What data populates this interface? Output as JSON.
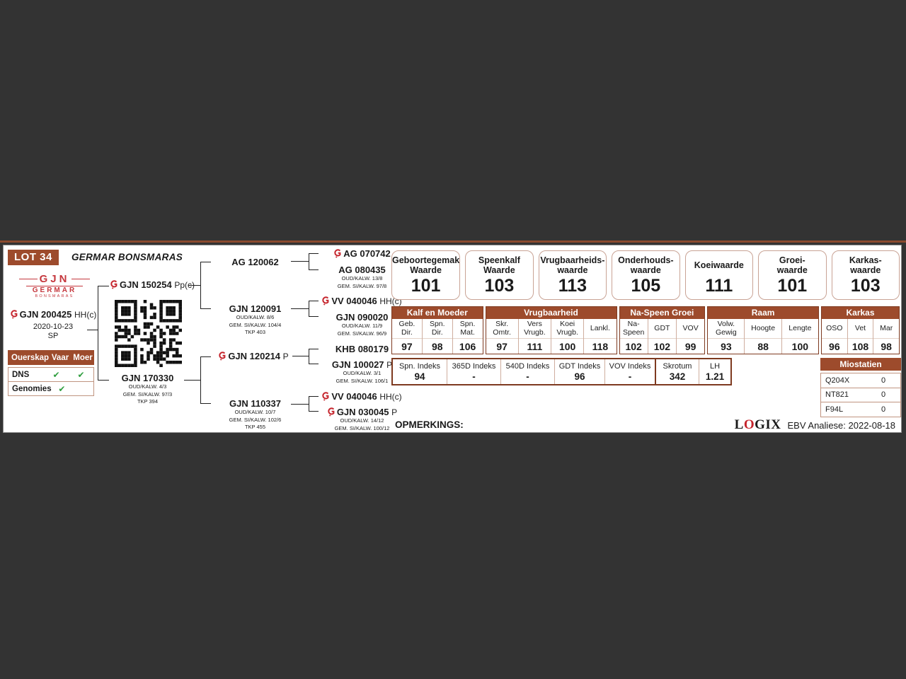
{
  "page": {
    "lot": "LOT 34",
    "title": "GERMAR BONSMARAS",
    "opmerkings": "OPMERKINGS:",
    "logix": {
      "l": "L",
      "o": "O",
      "gix": "GIX"
    },
    "analysis": "EBV Analiese: 2022-08-18"
  },
  "logo": {
    "gjn": "GJN",
    "germar": "GERMAR",
    "bonsmaras": "BONSMARAS"
  },
  "animal": {
    "id": "GJN 200425",
    "suffix": "HH(c)",
    "dob": "2020-10-23",
    "herd": "SP"
  },
  "ouerskap": {
    "headers": [
      "Ouerskap",
      "Vaar",
      "Moer"
    ],
    "rows": [
      {
        "label": "DNS",
        "vaar": "✔",
        "moer": "✔"
      },
      {
        "label": "Genomies",
        "vaar": "✔",
        "moer": ""
      }
    ]
  },
  "pedigree": {
    "sire": {
      "id": "GJN 150254",
      "suffix": "Pp(c)"
    },
    "dam": {
      "id": "GJN 170330",
      "details": [
        "OUD/KALW. 4/3",
        "GEM. SI/KALW. 97/3",
        "TKP 394"
      ]
    },
    "ss": {
      "id": "AG 120062"
    },
    "sd": {
      "id": "GJN 120091",
      "details": [
        "OUD/KALW. 8/6",
        "GEM. SI/KALW. 104/4",
        "TKP 403"
      ]
    },
    "ds": {
      "id": "GJN 120214",
      "suffix": "P"
    },
    "dd": {
      "id": "GJN 110337",
      "details": [
        "OUD/KALW. 10/7",
        "GEM. SI/KALW. 102/6",
        "TKP 455"
      ]
    },
    "sss": {
      "id": "AG 070742"
    },
    "ssd": {
      "id": "AG 080435",
      "details": [
        "OUD/KALW. 13/8",
        "GEM. SI/KALW. 97/8"
      ]
    },
    "sds": {
      "id": "VV 040046",
      "suffix": "HH(c)"
    },
    "sdd": {
      "id": "GJN 090020",
      "details": [
        "OUD/KALW. 11/9",
        "GEM. SI/KALW. 96/9"
      ]
    },
    "dss": {
      "id": "KHB 080179"
    },
    "dsd": {
      "id": "GJN 100027",
      "suffix": "P",
      "details": [
        "OUD/KALW. 3/1",
        "GEM. SI/KALW. 106/1"
      ]
    },
    "dds": {
      "id": "VV 040046",
      "suffix": "HH(c)"
    },
    "ddd": {
      "id": "GJN 030045",
      "suffix": "P",
      "details": [
        "OUD/KALW. 14/12",
        "GEM. SI/KALW. 100/12"
      ]
    }
  },
  "ebv": [
    {
      "l1": "Geboortegemak",
      "l2": "Waarde",
      "value": "101"
    },
    {
      "l1": "Speenkalf",
      "l2": "Waarde",
      "value": "103"
    },
    {
      "l1": "Vrugbaarheids-",
      "l2": "waarde",
      "value": "113"
    },
    {
      "l1": "Onderhouds-",
      "l2": "waarde",
      "value": "105"
    },
    {
      "l1": "Koeiwaarde",
      "l2": "",
      "value": "111"
    },
    {
      "l1": "Groei-",
      "l2": "waarde",
      "value": "101"
    },
    {
      "l1": "Karkas-",
      "l2": "waarde",
      "value": "103"
    }
  ],
  "stats": [
    {
      "title": "Kalf en Moeder",
      "cols": [
        {
          "h": "Geb.\nDir.",
          "v": "97"
        },
        {
          "h": "Spn.\nDir.",
          "v": "98"
        },
        {
          "h": "Spn.\nMat.",
          "v": "106"
        }
      ]
    },
    {
      "title": "Vrugbaarheid",
      "cols": [
        {
          "h": "Skr.\nOmtr.",
          "v": "97"
        },
        {
          "h": "Vers\nVrugb.",
          "v": "111"
        },
        {
          "h": "Koei\nVrugb.",
          "v": "100"
        },
        {
          "h": "Lankl.",
          "v": "118"
        }
      ]
    },
    {
      "title": "Na-Speen Groei",
      "cols": [
        {
          "h": "Na-\nSpeen",
          "v": "102"
        },
        {
          "h": "GDT",
          "v": "102"
        },
        {
          "h": "VOV",
          "v": "99"
        }
      ]
    },
    {
      "title": "Raam",
      "cols": [
        {
          "h": "Volw.\nGewig",
          "v": "93"
        },
        {
          "h": "Hoogte",
          "v": "88"
        },
        {
          "h": "Lengte",
          "v": "100"
        }
      ]
    },
    {
      "title": "Karkas",
      "cols": [
        {
          "h": "OSO",
          "v": "96"
        },
        {
          "h": "Vet",
          "v": "108"
        },
        {
          "h": "Mar",
          "v": "98"
        }
      ]
    }
  ],
  "indeks": [
    {
      "h": "Spn. Indeks",
      "v": "94"
    },
    {
      "h": "365D Indeks",
      "v": "-"
    },
    {
      "h": "540D Indeks",
      "v": "-"
    },
    {
      "h": "GDT Indeks",
      "v": "96"
    },
    {
      "h": "VOV Indeks",
      "v": "-"
    },
    {
      "h": "Skrotum",
      "v": "342"
    },
    {
      "h": "LH",
      "v": "1.21"
    }
  ],
  "miostatien": {
    "title": "Miostatien",
    "rows": [
      {
        "label": "Q204X",
        "value": "0"
      },
      {
        "label": "NT821",
        "value": "0"
      },
      {
        "label": "F94L",
        "value": "0"
      }
    ]
  },
  "colors": {
    "accent_brown": "#9d4b2c",
    "border_brown": "#7e3a20",
    "brand_red": "#c5242c",
    "check_green": "#2f9e3f",
    "background": "#333333"
  }
}
